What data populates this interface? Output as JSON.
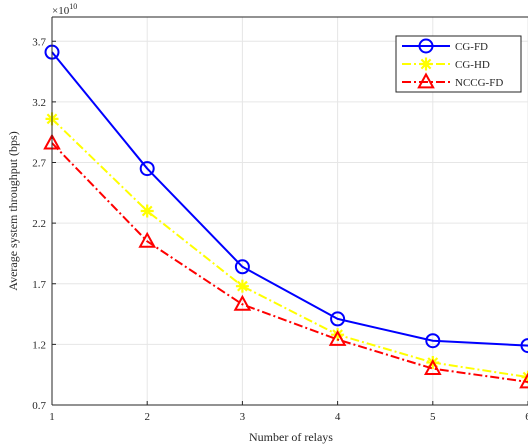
{
  "chart_data": {
    "type": "line",
    "xlabel": "Number of relays",
    "ylabel": "Average system throughput (bps)",
    "exponent_label": "×10",
    "exponent_power": "10",
    "x": [
      1,
      2,
      3,
      4,
      5,
      6
    ],
    "xlim": [
      1,
      6
    ],
    "ylim": [
      0.7,
      3.9
    ],
    "y_ticks": [
      0.7,
      1.2,
      1.7,
      2.2,
      2.7,
      3.2,
      3.7
    ],
    "x_tick_labels": [
      "1",
      "2",
      "3",
      "4",
      "5",
      "6"
    ],
    "y_tick_labels": [
      "0.7",
      "1.2",
      "1.7",
      "2.2",
      "2.7",
      "3.2",
      "3.7"
    ],
    "grid": true,
    "legend_position": "top-right",
    "series": [
      {
        "name": "CG-FD",
        "values": [
          3.61,
          2.65,
          1.84,
          1.41,
          1.23,
          1.19
        ],
        "color": "#0000ff",
        "dash": "solid",
        "marker": "circle"
      },
      {
        "name": "CG-HD",
        "values": [
          3.06,
          2.3,
          1.68,
          1.28,
          1.05,
          0.93
        ],
        "color": "#ffff00",
        "dash": "dashdot",
        "marker": "star"
      },
      {
        "name": "NCCG-FD",
        "values": [
          2.86,
          2.05,
          1.53,
          1.24,
          1.0,
          0.89
        ],
        "color": "#ff0000",
        "dash": "dashdot",
        "marker": "triangle"
      }
    ]
  }
}
